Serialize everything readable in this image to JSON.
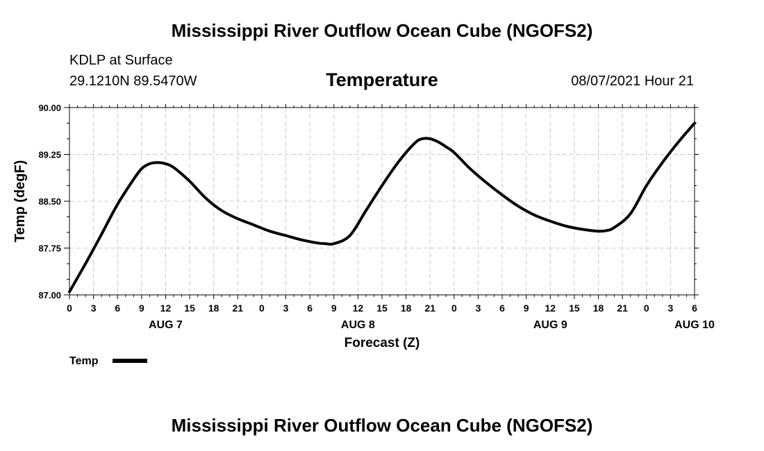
{
  "header": {
    "title": "Mississippi River Outflow Ocean Cube (NGOFS2)",
    "station": "KDLP at Surface",
    "coords": "29.1210N  89.5470W",
    "panel_title": "Temperature",
    "datetime": "08/07/2021 Hour 21"
  },
  "footer": {
    "title": "Mississippi River Outflow Ocean Cube (NGOFS2)"
  },
  "chart_data": {
    "type": "line",
    "title": "Temperature",
    "xlabel": "Forecast (Z)",
    "ylabel": "Temp (degF)",
    "xlim": [
      0,
      78
    ],
    "ylim": [
      87.0,
      90.0
    ],
    "y_ticks": [
      "87.00",
      "87.75",
      "88.50",
      "89.25",
      "90.00"
    ],
    "y_tick_values": [
      87.0,
      87.75,
      88.5,
      89.25,
      90.0
    ],
    "x_tick_labels": [
      "0",
      "3",
      "6",
      "9",
      "12",
      "15",
      "18",
      "21",
      "0",
      "3",
      "6",
      "9",
      "12",
      "15",
      "18",
      "21",
      "0",
      "3",
      "6",
      "9",
      "12",
      "15",
      "18",
      "21",
      "0",
      "3",
      "6"
    ],
    "x_day_labels": [
      {
        "label": "AUG 7",
        "hour": 12
      },
      {
        "label": "AUG 8",
        "hour": 36
      },
      {
        "label": "AUG 9",
        "hour": 60
      },
      {
        "label": "AUG 10",
        "hour": 78
      }
    ],
    "grid": true,
    "legend": {
      "position": "bottom-left",
      "label": "Temp"
    },
    "series": [
      {
        "name": "Temp",
        "color": "#000000",
        "x": [
          0,
          2,
          4,
          6,
          8,
          9,
          10,
          11,
          12,
          13,
          15,
          17,
          19,
          21,
          23,
          25,
          27,
          29,
          31,
          32,
          33,
          35,
          37,
          39,
          41,
          43,
          44,
          45,
          46,
          47,
          48,
          50,
          52,
          54,
          56,
          58,
          60,
          62,
          64,
          66,
          67,
          68,
          70,
          72,
          74,
          76,
          78
        ],
        "y": [
          87.05,
          87.5,
          87.97,
          88.45,
          88.85,
          89.02,
          89.1,
          89.12,
          89.1,
          89.04,
          88.82,
          88.55,
          88.35,
          88.22,
          88.12,
          88.02,
          87.95,
          87.88,
          87.83,
          87.82,
          87.82,
          87.95,
          88.35,
          88.75,
          89.12,
          89.42,
          89.5,
          89.5,
          89.45,
          89.37,
          89.28,
          89.02,
          88.8,
          88.6,
          88.42,
          88.28,
          88.18,
          88.1,
          88.05,
          88.02,
          88.03,
          88.08,
          88.3,
          88.75,
          89.12,
          89.45,
          89.75
        ]
      }
    ]
  }
}
